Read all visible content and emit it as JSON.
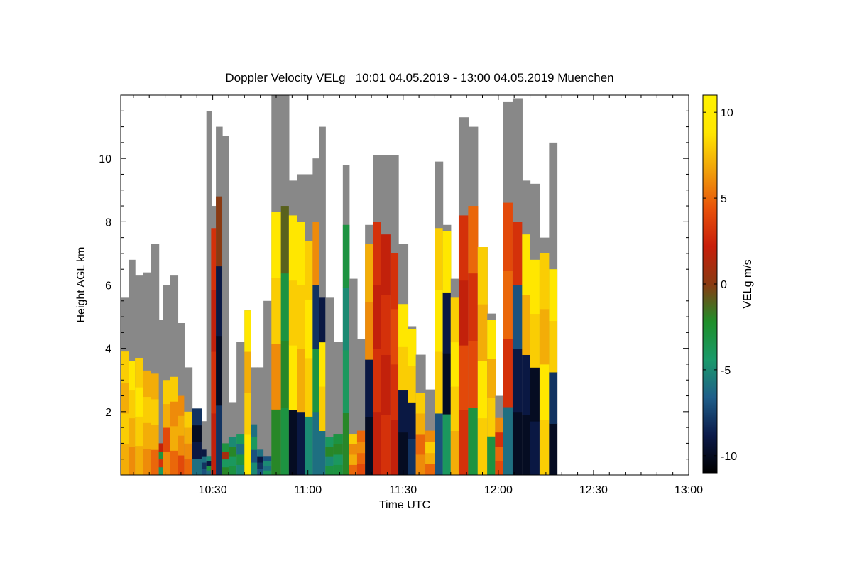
{
  "chart_data": {
    "type": "heatmap",
    "title": "Doppler Velocity VELg   10:01 04.05.2019 - 13:00 04.05.2019 Muenchen",
    "xlabel": "Time UTC",
    "ylabel": "Height AGL km",
    "xlim_minutes": [
      601,
      780
    ],
    "ylim_km": [
      0,
      12
    ],
    "x_ticks": [
      {
        "minutes": 630,
        "label": "10:30"
      },
      {
        "minutes": 660,
        "label": "11:00"
      },
      {
        "minutes": 690,
        "label": "11:30"
      },
      {
        "minutes": 720,
        "label": "12:00"
      },
      {
        "minutes": 750,
        "label": "12:30"
      },
      {
        "minutes": 780,
        "label": "13:00"
      }
    ],
    "y_ticks": [
      {
        "km": 2,
        "label": "2"
      },
      {
        "km": 4,
        "label": "4"
      },
      {
        "km": 6,
        "label": "6"
      },
      {
        "km": 8,
        "label": "8"
      },
      {
        "km": 10,
        "label": "10"
      }
    ],
    "colorbar": {
      "label": "VELg m/s",
      "range": [
        -11,
        11
      ],
      "ticks": [
        {
          "value": 10,
          "label": "10"
        },
        {
          "value": 5,
          "label": "5"
        },
        {
          "value": 0,
          "label": "0"
        },
        {
          "value": -5,
          "label": "-5"
        },
        {
          "value": -10,
          "label": "-10"
        }
      ],
      "colors": [
        "#000000",
        "#0b1a4a",
        "#1f5f8a",
        "#1a9a6a",
        "#1e8f2a",
        "#8a3a12",
        "#c81e0a",
        "#e8520a",
        "#f0a00a",
        "#ffe600",
        "#fff200"
      ]
    },
    "no_velocity_color": "#888888",
    "segments": [
      {
        "t0": 601.0,
        "t1": 603.5,
        "top": 5.6,
        "vel_top": 3.9,
        "vel": [
          7,
          8,
          7,
          8
        ]
      },
      {
        "t0": 603.5,
        "t1": 605.5,
        "top": 6.8,
        "vel_top": 3.6,
        "vel": [
          6,
          7,
          8,
          9
        ]
      },
      {
        "t0": 605.5,
        "t1": 608.0,
        "top": 6.3,
        "vel_top": 3.7,
        "vel": [
          7,
          8,
          9,
          8
        ]
      },
      {
        "t0": 608.0,
        "t1": 610.5,
        "top": 6.4,
        "vel_top": 3.3,
        "vel": [
          6,
          7,
          8,
          7
        ]
      },
      {
        "t0": 610.5,
        "t1": 613.0,
        "top": 7.3,
        "vel_top": 3.2,
        "vel": [
          5,
          7,
          8,
          7
        ]
      },
      {
        "t0": 613.0,
        "t1": 614.3,
        "top": 4.9,
        "vel_top": 1.0,
        "vel": [
          -4,
          3,
          -3,
          2
        ]
      },
      {
        "t0": 614.3,
        "t1": 616.5,
        "top": 6.0,
        "vel_top": 3.0,
        "vel": [
          6,
          4,
          7,
          8
        ]
      },
      {
        "t0": 616.5,
        "t1": 619.0,
        "top": 6.3,
        "vel_top": 3.1,
        "vel": [
          5,
          7,
          6,
          8
        ]
      },
      {
        "t0": 619.0,
        "t1": 621.0,
        "top": 4.8,
        "vel_top": 2.5,
        "vel": [
          4,
          6,
          7,
          6
        ]
      },
      {
        "t0": 621.0,
        "t1": 623.5,
        "top": 3.4,
        "vel_top": 2.0,
        "vel": [
          5,
          6,
          7,
          8
        ]
      },
      {
        "t0": 623.5,
        "t1": 626.5,
        "top": 2.1,
        "vel_top": 2.1,
        "vel": [
          -6,
          -9,
          -10,
          -8
        ]
      },
      {
        "t0": 626.5,
        "t1": 628.0,
        "top": 1.7,
        "vel_top": 0.8,
        "vel": [
          -7,
          -8,
          -6,
          -9
        ]
      },
      {
        "t0": 628.0,
        "t1": 629.5,
        "top": 11.5,
        "vel_top": 0.6,
        "vel": [
          -6,
          -3,
          -9,
          -5
        ]
      },
      {
        "t0": 629.5,
        "t1": 631.0,
        "top": 8.5,
        "vel_top": 7.8,
        "vel": [
          2,
          3,
          2,
          3
        ]
      },
      {
        "t0": 631.0,
        "t1": 633.0,
        "top": 11.0,
        "vel_top": 8.8,
        "vel": [
          -8,
          -10,
          -9,
          0
        ]
      },
      {
        "t0": 633.0,
        "t1": 635.0,
        "top": 10.7,
        "vel_top": 1.0,
        "vel": [
          -2,
          -4,
          1,
          -3
        ]
      },
      {
        "t0": 635.0,
        "t1": 637.5,
        "top": 2.3,
        "vel_top": 1.2,
        "vel": [
          -3,
          -4,
          -2,
          -5
        ]
      },
      {
        "t0": 637.5,
        "t1": 640.0,
        "top": 4.2,
        "vel_top": 1.3,
        "vel": [
          -5,
          -3,
          -6,
          -4
        ]
      },
      {
        "t0": 640.0,
        "t1": 642.0,
        "top": 5.2,
        "vel_top": 5.2,
        "vel": [
          9,
          8,
          7,
          9
        ]
      },
      {
        "t0": 642.0,
        "t1": 644.0,
        "top": 3.4,
        "vel_top": 1.6,
        "vel": [
          -5,
          -7,
          -4,
          -6
        ]
      },
      {
        "t0": 644.0,
        "t1": 646.0,
        "top": 3.4,
        "vel_top": 0.8,
        "vel": [
          -7,
          -8,
          -9,
          -6
        ]
      },
      {
        "t0": 646.0,
        "t1": 648.5,
        "top": 5.5,
        "vel_top": 0.6,
        "vel": [
          -4,
          -6,
          -5,
          -7
        ]
      },
      {
        "t0": 648.5,
        "t1": 651.5,
        "top": 12.0,
        "vel_top": 8.3,
        "vel": [
          -2,
          6,
          8,
          9
        ]
      },
      {
        "t0": 651.5,
        "t1": 654.0,
        "top": 12.0,
        "vel_top": 8.5,
        "vel": [
          -3,
          -2,
          -3,
          -1
        ]
      },
      {
        "t0": 654.0,
        "t1": 656.5,
        "top": 9.3,
        "vel_top": 8.2,
        "vel": [
          -10,
          9,
          8,
          9
        ]
      },
      {
        "t0": 656.5,
        "t1": 659.0,
        "top": 9.5,
        "vel_top": 8.0,
        "vel": [
          -9,
          7,
          8,
          9
        ]
      },
      {
        "t0": 659.0,
        "t1": 661.5,
        "top": 9.5,
        "vel_top": 7.4,
        "vel": [
          -5,
          8,
          9,
          8
        ]
      },
      {
        "t0": 661.5,
        "t1": 663.5,
        "top": 10.0,
        "vel_top": 8.0,
        "vel": [
          -6,
          -3,
          -8,
          6
        ]
      },
      {
        "t0": 663.5,
        "t1": 665.5,
        "top": 11.0,
        "vel_top": 5.6,
        "vel": [
          -6,
          8,
          9,
          -9
        ]
      },
      {
        "t0": 665.5,
        "t1": 668.0,
        "top": 5.6,
        "vel_top": 1.2,
        "vel": [
          -3,
          -5,
          -2,
          -4
        ]
      },
      {
        "t0": 668.0,
        "t1": 671.0,
        "top": 4.2,
        "vel_top": 1.3,
        "vel": [
          -3,
          -4,
          -2,
          -3
        ]
      },
      {
        "t0": 671.0,
        "t1": 673.0,
        "top": 9.8,
        "vel_top": 7.9,
        "vel": [
          -2,
          -4,
          -5,
          -3
        ]
      },
      {
        "t0": 673.0,
        "t1": 675.5,
        "top": 6.2,
        "vel_top": 1.3,
        "vel": [
          5,
          7,
          6,
          8
        ]
      },
      {
        "t0": 675.5,
        "t1": 678.0,
        "top": 4.3,
        "vel_top": 1.4,
        "vel": [
          4,
          5,
          6,
          5
        ]
      },
      {
        "t0": 678.0,
        "t1": 680.5,
        "top": 7.9,
        "vel_top": 7.3,
        "vel": [
          -10,
          -9,
          6,
          7
        ]
      },
      {
        "t0": 680.5,
        "t1": 683.0,
        "top": 10.1,
        "vel_top": 8.0,
        "vel": [
          2,
          3,
          2,
          3
        ]
      },
      {
        "t0": 683.0,
        "t1": 686.0,
        "top": 10.1,
        "vel_top": 7.6,
        "vel": [
          3,
          2,
          3,
          2
        ]
      },
      {
        "t0": 686.0,
        "t1": 688.5,
        "top": 10.1,
        "vel_top": 7.0,
        "vel": [
          2,
          3,
          4,
          3
        ]
      },
      {
        "t0": 688.5,
        "t1": 691.5,
        "top": 7.3,
        "vel_top": 5.4,
        "vel": [
          -10,
          -9,
          8,
          9
        ]
      },
      {
        "t0": 691.5,
        "t1": 694.0,
        "top": 4.7,
        "vel_top": 4.6,
        "vel": [
          -8,
          -9,
          8,
          9
        ]
      },
      {
        "t0": 694.0,
        "t1": 697.0,
        "top": 3.8,
        "vel_top": 2.6,
        "vel": [
          6,
          5,
          7,
          8
        ]
      },
      {
        "t0": 697.0,
        "t1": 700.0,
        "top": 2.7,
        "vel_top": 1.4,
        "vel": [
          5,
          7,
          8,
          6
        ]
      },
      {
        "t0": 700.0,
        "t1": 702.5,
        "top": 9.9,
        "vel_top": 7.8,
        "vel": [
          -7,
          8,
          9,
          8
        ]
      },
      {
        "t0": 702.5,
        "t1": 705.0,
        "top": 7.9,
        "vel_top": 7.7,
        "vel": [
          -4,
          -10,
          -9,
          9
        ]
      },
      {
        "t0": 705.0,
        "t1": 707.5,
        "top": 6.2,
        "vel_top": 5.6,
        "vel": [
          7,
          8,
          9,
          8
        ]
      },
      {
        "t0": 707.5,
        "t1": 710.5,
        "top": 11.3,
        "vel_top": 8.2,
        "vel": [
          3,
          4,
          2,
          3
        ]
      },
      {
        "t0": 710.5,
        "t1": 713.5,
        "top": 11.0,
        "vel_top": 8.5,
        "vel": [
          -3,
          4,
          3,
          5
        ]
      },
      {
        "t0": 713.5,
        "t1": 716.5,
        "top": 7.2,
        "vel_top": 7.2,
        "vel": [
          8,
          9,
          7,
          8
        ]
      },
      {
        "t0": 716.5,
        "t1": 719.0,
        "top": 5.1,
        "vel_top": 4.9,
        "vel": [
          -3,
          8,
          7,
          9
        ]
      },
      {
        "t0": 719.0,
        "t1": 721.5,
        "top": 2.5,
        "vel_top": 1.8,
        "vel": [
          4,
          5,
          3,
          6
        ]
      },
      {
        "t0": 721.5,
        "t1": 724.5,
        "top": 11.8,
        "vel_top": 8.6,
        "vel": [
          -6,
          3,
          5,
          4
        ]
      },
      {
        "t0": 724.5,
        "t1": 727.5,
        "top": 11.9,
        "vel_top": 8.0,
        "vel": [
          -10,
          -9,
          -7,
          3
        ]
      },
      {
        "t0": 727.5,
        "t1": 730.0,
        "top": 9.3,
        "vel_top": 7.6,
        "vel": [
          -10,
          -9,
          7,
          9
        ]
      },
      {
        "t0": 730.0,
        "t1": 733.0,
        "top": 9.2,
        "vel_top": 6.8,
        "vel": [
          -9,
          -10,
          8,
          9
        ]
      },
      {
        "t0": 733.0,
        "t1": 736.0,
        "top": 7.5,
        "vel_top": 7.0,
        "vel": [
          8,
          9,
          7,
          8
        ]
      },
      {
        "t0": 736.0,
        "t1": 738.5,
        "top": 10.5,
        "vel_top": 6.5,
        "vel": [
          -10,
          -8,
          8,
          9
        ]
      }
    ]
  }
}
